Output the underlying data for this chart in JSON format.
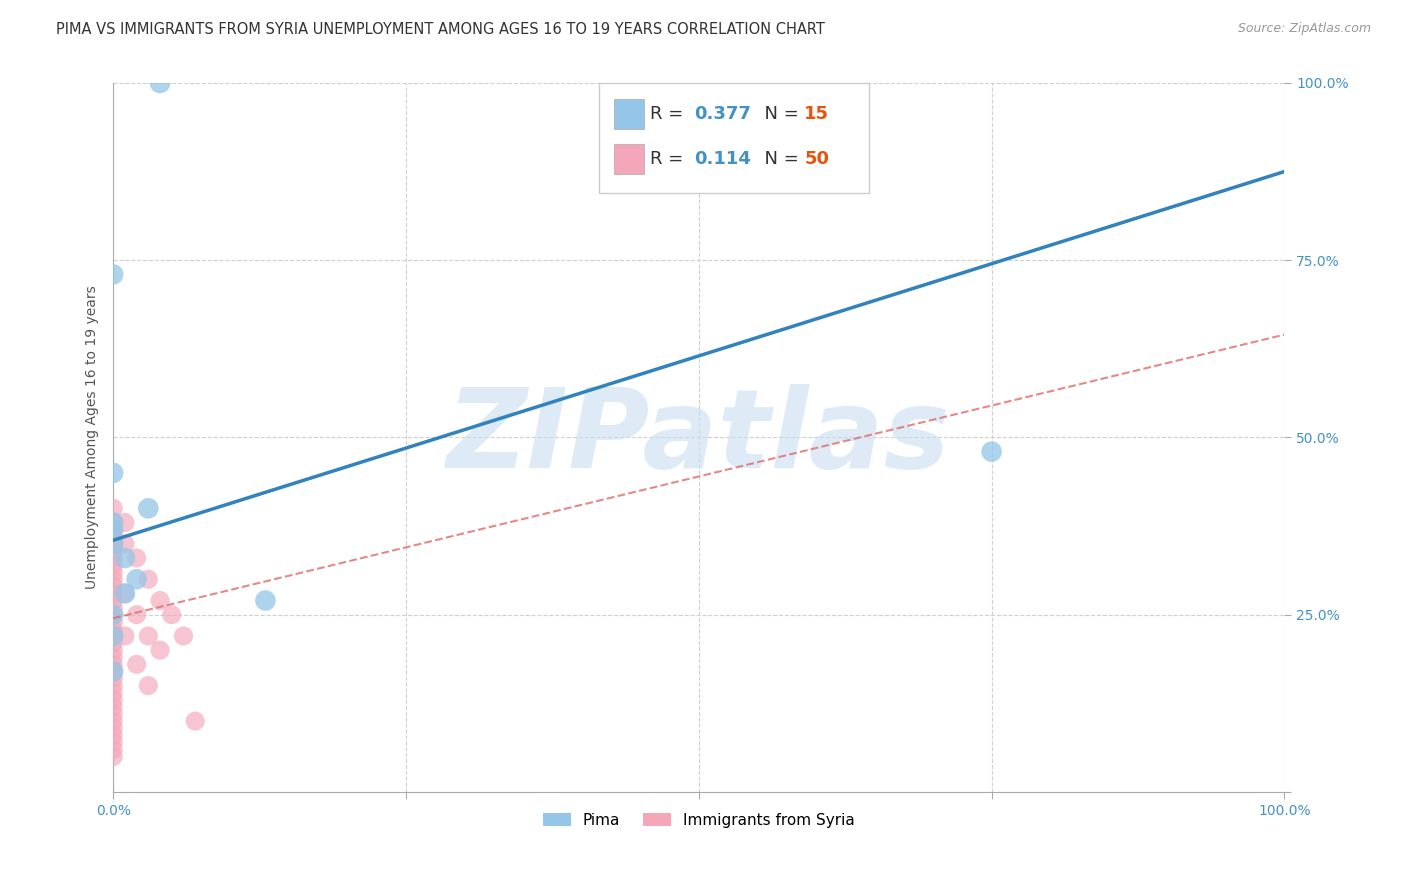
{
  "title": "PIMA VS IMMIGRANTS FROM SYRIA UNEMPLOYMENT AMONG AGES 16 TO 19 YEARS CORRELATION CHART",
  "source_text": "Source: ZipAtlas.com",
  "ylabel": "Unemployment Among Ages 16 to 19 years",
  "xlim": [
    0.0,
    1.0
  ],
  "ylim": [
    0.0,
    1.0
  ],
  "xticks": [
    0.0,
    0.25,
    0.5,
    0.75,
    1.0
  ],
  "yticks": [
    0.0,
    0.25,
    0.5,
    0.75,
    1.0
  ],
  "xtick_labels": [
    "0.0%",
    "",
    "",
    "",
    "100.0%"
  ],
  "ytick_labels": [
    "",
    "25.0%",
    "50.0%",
    "75.0%",
    "100.0%"
  ],
  "pima_color": "#93c6e8",
  "syria_color": "#f4a7b9",
  "pima_R": "0.377",
  "pima_N": "15",
  "syria_R": "0.114",
  "syria_N": "50",
  "watermark": "ZIPatlas",
  "watermark_color": "#c8dff0",
  "legend_R_color": "#4292c6",
  "legend_N_color": "#e6550d",
  "pima_scatter_x": [
    0.04,
    0.0,
    0.0,
    0.03,
    0.0,
    0.0,
    0.0,
    0.01,
    0.02,
    0.01,
    0.13,
    0.0,
    0.0,
    0.75,
    0.0
  ],
  "pima_scatter_y": [
    1.0,
    0.73,
    0.45,
    0.4,
    0.38,
    0.37,
    0.35,
    0.33,
    0.3,
    0.28,
    0.27,
    0.22,
    0.17,
    0.48,
    0.25
  ],
  "syria_scatter_x": [
    0.0,
    0.0,
    0.0,
    0.0,
    0.0,
    0.0,
    0.0,
    0.0,
    0.0,
    0.0,
    0.0,
    0.0,
    0.0,
    0.0,
    0.0,
    0.0,
    0.0,
    0.0,
    0.0,
    0.0,
    0.0,
    0.0,
    0.0,
    0.0,
    0.0,
    0.0,
    0.0,
    0.0,
    0.0,
    0.0,
    0.0,
    0.0,
    0.0,
    0.0,
    0.0,
    0.01,
    0.01,
    0.01,
    0.01,
    0.02,
    0.02,
    0.02,
    0.03,
    0.03,
    0.03,
    0.04,
    0.04,
    0.05,
    0.06,
    0.07
  ],
  "syria_scatter_y": [
    0.4,
    0.38,
    0.37,
    0.36,
    0.35,
    0.34,
    0.33,
    0.32,
    0.31,
    0.3,
    0.29,
    0.28,
    0.27,
    0.26,
    0.25,
    0.24,
    0.23,
    0.22,
    0.21,
    0.2,
    0.19,
    0.18,
    0.17,
    0.16,
    0.15,
    0.14,
    0.13,
    0.12,
    0.11,
    0.1,
    0.09,
    0.08,
    0.07,
    0.06,
    0.05,
    0.38,
    0.35,
    0.28,
    0.22,
    0.33,
    0.25,
    0.18,
    0.3,
    0.22,
    0.15,
    0.27,
    0.2,
    0.25,
    0.22,
    0.1
  ],
  "pima_line": [
    0.0,
    1.0,
    0.355,
    0.875
  ],
  "syria_line": [
    0.0,
    1.0,
    0.245,
    0.645
  ],
  "pima_line_color": "#3182bd",
  "syria_line_color": "#de6b6b",
  "grid_color": "#d0d0d0",
  "background_color": "#ffffff",
  "title_fontsize": 10.5,
  "axis_tick_fontsize": 10,
  "legend_fontsize": 13
}
